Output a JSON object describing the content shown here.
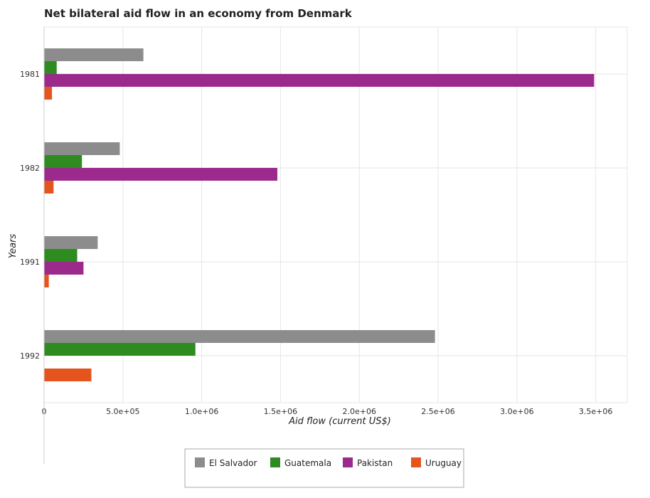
{
  "chart_data": {
    "type": "bar",
    "orientation": "horizontal",
    "title": "Net bilateral aid flow in an economy from Denmark",
    "xlabel": "Aid flow (current US$)",
    "ylabel": "Years",
    "categories": [
      "1981",
      "1982",
      "1991",
      "1992"
    ],
    "series": [
      {
        "name": "El Salvador",
        "color": "#8c8c8c",
        "values": [
          630000,
          480000,
          340000,
          2480000
        ]
      },
      {
        "name": "Guatemala",
        "color": "#2e8b20",
        "values": [
          80000,
          240000,
          210000,
          960000
        ]
      },
      {
        "name": "Pakistan",
        "color": "#9b2a8c",
        "values": [
          3490000,
          1480000,
          250000,
          0
        ]
      },
      {
        "name": "Uruguay",
        "color": "#e5541c",
        "values": [
          50000,
          60000,
          30000,
          300000
        ]
      }
    ],
    "xlim": [
      0,
      3700000
    ],
    "xticks": [
      0,
      500000,
      1000000,
      1500000,
      2000000,
      2500000,
      3000000,
      3500000
    ],
    "xtick_labels": [
      "0",
      "5.0e+05",
      "1.0e+06",
      "1.5e+06",
      "2.0e+06",
      "2.5e+06",
      "3.0e+06",
      "3.5e+06"
    ],
    "grid": true,
    "legend_position": "bottom-center"
  }
}
